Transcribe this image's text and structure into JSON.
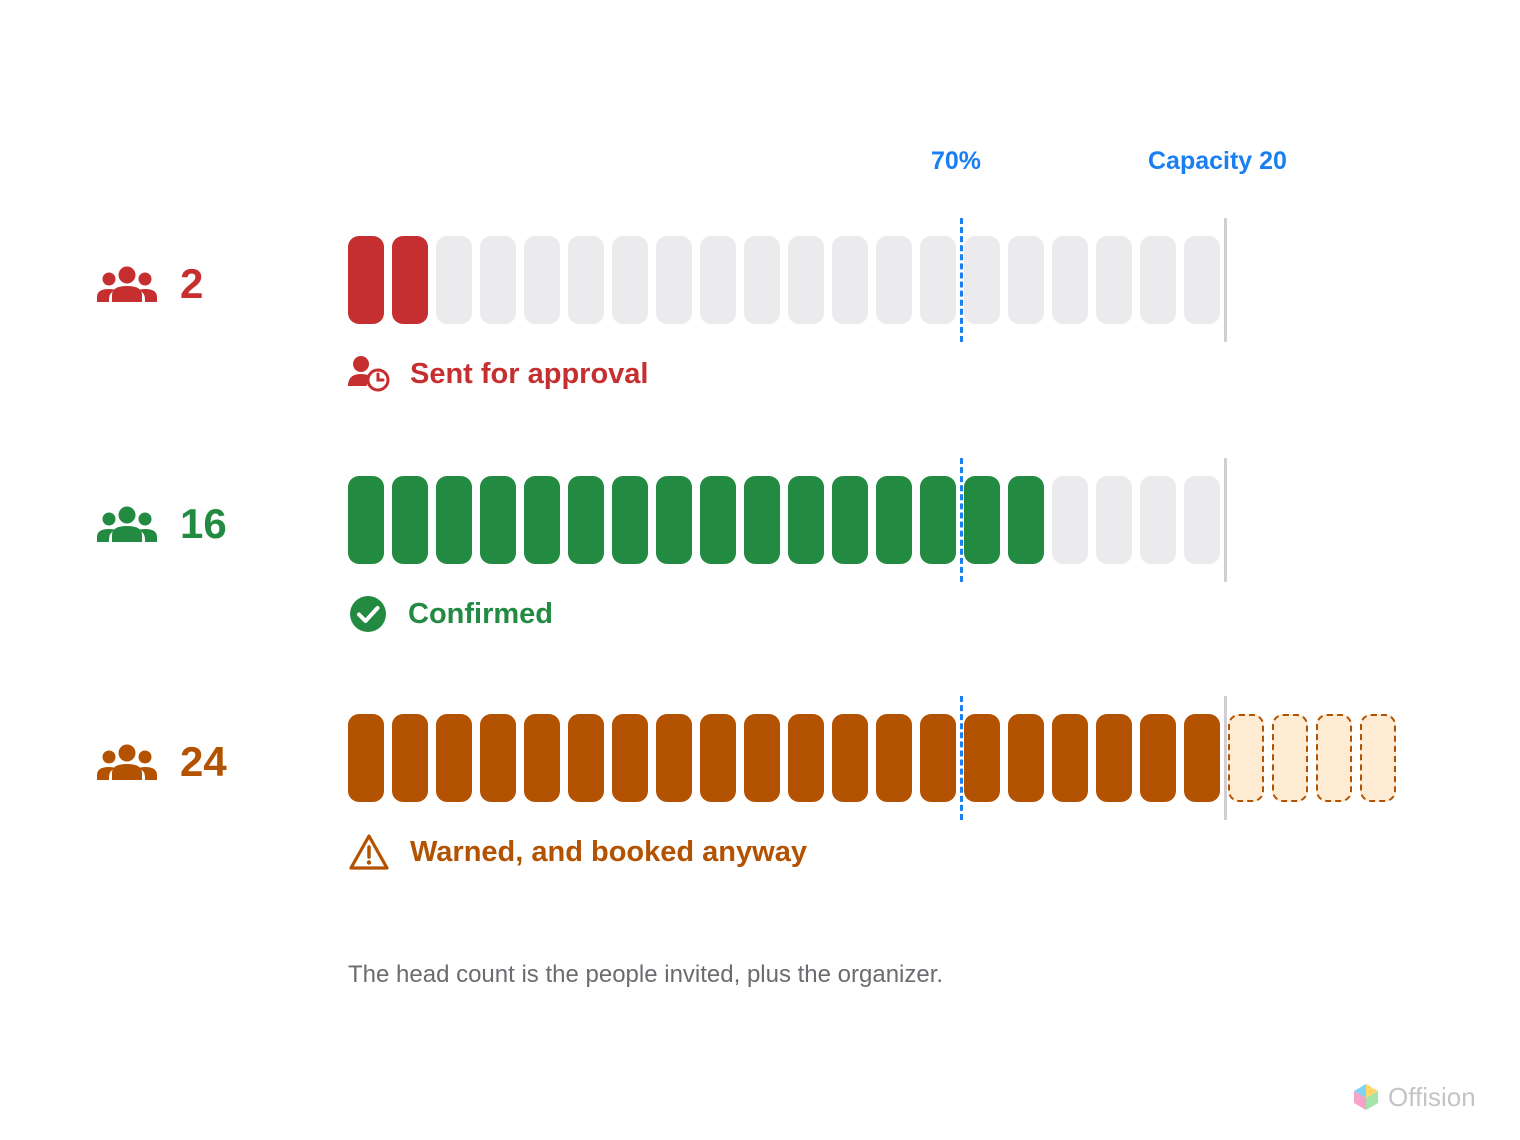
{
  "markers": {
    "threshold_label": "70%",
    "capacity_label": "Capacity 20"
  },
  "chart_data": {
    "type": "bar",
    "capacity": 20,
    "threshold_percent": 70,
    "rows": [
      {
        "count": 2,
        "status": "Sent for approval",
        "color": "#c62f2f",
        "status_icon": "person-clock-icon"
      },
      {
        "count": 16,
        "status": "Confirmed",
        "color": "#238a42",
        "status_icon": "check-circle-icon"
      },
      {
        "count": 24,
        "status": "Warned, and booked anyway",
        "color": "#b35200",
        "status_icon": "warning-triangle-icon"
      }
    ]
  },
  "rows": [
    {
      "count_text": "2",
      "status_text": "Sent for approval"
    },
    {
      "count_text": "16",
      "status_text": "Confirmed"
    },
    {
      "count_text": "24",
      "status_text": "Warned, and booked anyway"
    }
  ],
  "colors": {
    "empty_segment": "#ebebee",
    "overflow_fill": "#fdebd3",
    "marker_blue": "#1a7ff0",
    "capacity_line": "#d0d0d4"
  },
  "icons": {
    "headcount": "group-icon"
  },
  "footnote": "The head count is the people invited, plus the organizer.",
  "brand": {
    "name": "Offision",
    "logo_icon": "offision-logo-icon"
  }
}
